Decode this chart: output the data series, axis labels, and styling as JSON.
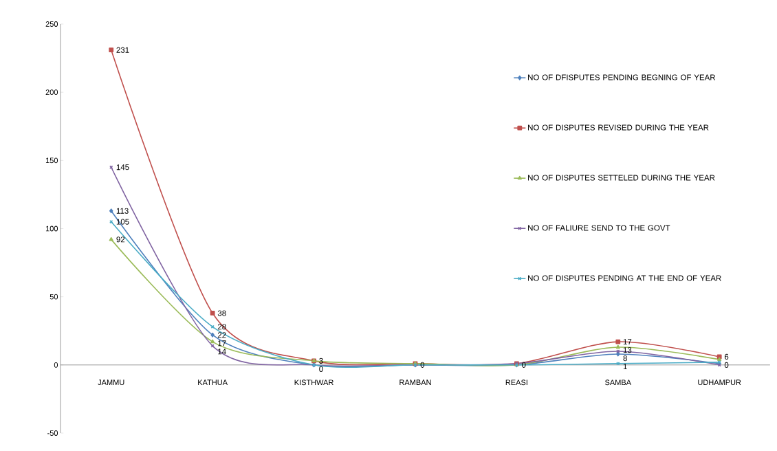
{
  "chart_data": {
    "type": "line",
    "categories": [
      "JAMMU",
      "KATHUA",
      "KISTHWAR",
      "RAMBAN",
      "REASI",
      "SAMBA",
      "UDHAMPUR"
    ],
    "series": [
      {
        "name": "NO OF DFISPUTES PENDING BEGNING OF YEAR",
        "color": "#4f81bd",
        "marker": "diamond",
        "values": [
          113,
          22,
          0,
          0,
          0,
          8,
          1
        ],
        "value_labels": [
          "113",
          "22",
          null,
          "0",
          null,
          "8",
          null
        ]
      },
      {
        "name": "NO OF DISPUTES REVISED DURING THE YEAR",
        "color": "#c0504d",
        "marker": "square",
        "values": [
          231,
          38,
          3,
          1,
          1,
          17,
          6
        ],
        "value_labels": [
          "231",
          "38",
          "3",
          null,
          null,
          "17",
          "6"
        ]
      },
      {
        "name": "NO OF DISPUTES SETTELED DURING THE YEAR",
        "color": "#9bbb59",
        "marker": "triangle",
        "values": [
          92,
          17,
          3,
          1,
          0,
          13,
          4
        ],
        "value_labels": [
          "92",
          "17",
          null,
          null,
          null,
          "13",
          null
        ]
      },
      {
        "name": "NO OF FALIURE SEND TO THE GOVT",
        "color": "#8064a2",
        "marker": "cross",
        "values": [
          145,
          14,
          0,
          0,
          1,
          10,
          0
        ],
        "value_labels": [
          "145",
          "14",
          null,
          null,
          null,
          null,
          "0"
        ]
      },
      {
        "name": "NO OF DISPUTES PENDING AT THE END OF YEAR",
        "color": "#4bacc6",
        "marker": "cross",
        "values": [
          105,
          28,
          0,
          0,
          0,
          1,
          2
        ],
        "value_labels": [
          "105",
          "28",
          "0",
          null,
          "0",
          "1",
          null
        ]
      }
    ],
    "ylim": [
      -50,
      250
    ],
    "yticks": [
      -50,
      0,
      50,
      100,
      150,
      200,
      250
    ],
    "legend": "right"
  }
}
